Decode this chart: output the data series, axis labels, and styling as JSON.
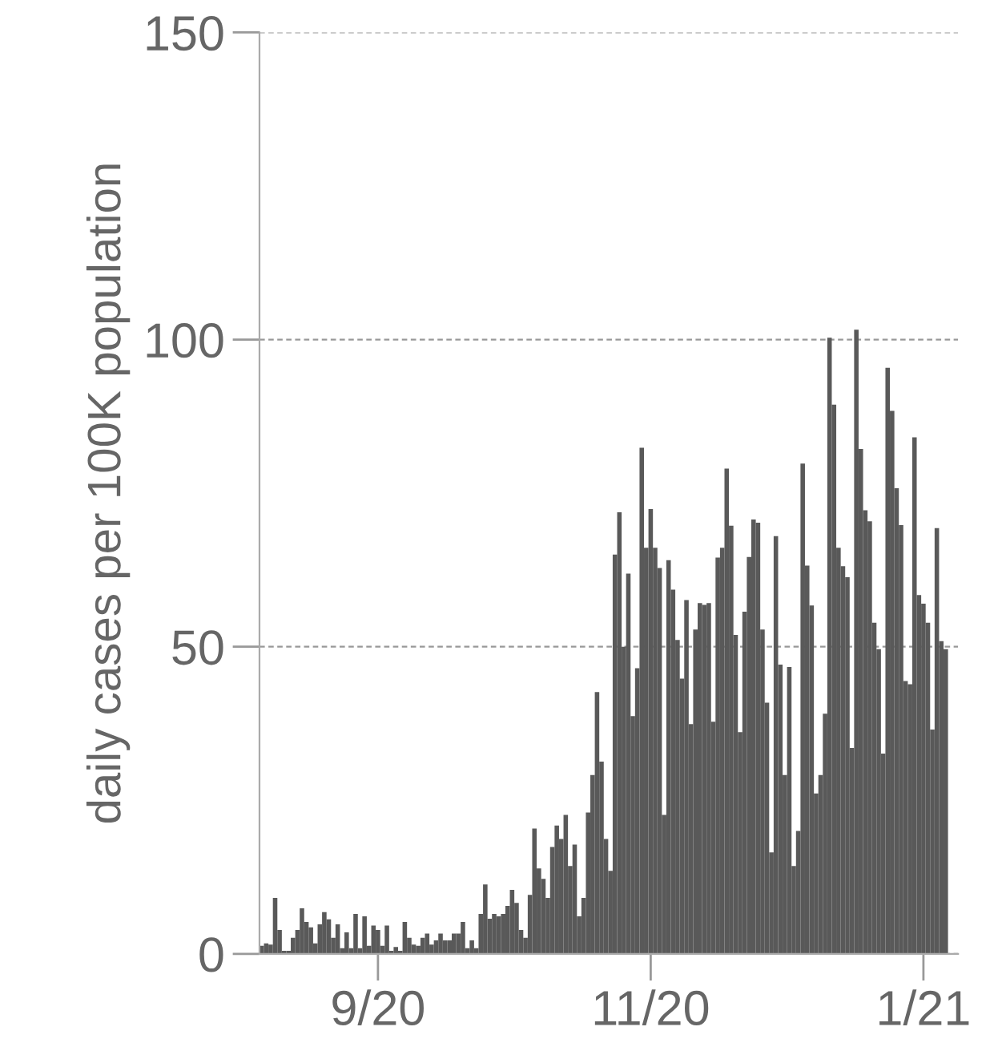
{
  "chart_data": {
    "type": "bar",
    "ylabel": "daily cases per 100K population",
    "color": "#595959",
    "x": [
      "2020-08-06",
      "2020-08-07",
      "2020-08-08",
      "2020-08-09",
      "2020-08-10",
      "2020-08-11",
      "2020-08-12",
      "2020-08-13",
      "2020-08-14",
      "2020-08-15",
      "2020-08-16",
      "2020-08-17",
      "2020-08-18",
      "2020-08-19",
      "2020-08-20",
      "2020-08-21",
      "2020-08-22",
      "2020-08-23",
      "2020-08-24",
      "2020-08-25",
      "2020-08-26",
      "2020-08-27",
      "2020-08-28",
      "2020-08-29",
      "2020-08-30",
      "2020-08-31",
      "2020-09-01",
      "2020-09-02",
      "2020-09-03",
      "2020-09-04",
      "2020-09-05",
      "2020-09-06",
      "2020-09-07",
      "2020-09-08",
      "2020-09-09",
      "2020-09-10",
      "2020-09-11",
      "2020-09-12",
      "2020-09-13",
      "2020-09-14",
      "2020-09-15",
      "2020-09-16",
      "2020-09-17",
      "2020-09-18",
      "2020-09-19",
      "2020-09-20",
      "2020-09-21",
      "2020-09-22",
      "2020-09-23",
      "2020-09-24",
      "2020-09-25",
      "2020-09-26",
      "2020-09-27",
      "2020-09-28",
      "2020-09-29",
      "2020-09-30",
      "2020-10-01",
      "2020-10-02",
      "2020-10-03",
      "2020-10-04",
      "2020-10-05",
      "2020-10-06",
      "2020-10-07",
      "2020-10-08",
      "2020-10-09",
      "2020-10-10",
      "2020-10-11",
      "2020-10-12",
      "2020-10-13",
      "2020-10-14",
      "2020-10-15",
      "2020-10-16",
      "2020-10-17",
      "2020-10-18",
      "2020-10-19",
      "2020-10-20",
      "2020-10-21",
      "2020-10-22",
      "2020-10-23",
      "2020-10-24",
      "2020-10-25",
      "2020-10-26",
      "2020-10-27",
      "2020-10-28",
      "2020-10-29",
      "2020-10-30",
      "2020-10-31",
      "2020-11-01",
      "2020-11-02",
      "2020-11-03",
      "2020-11-04",
      "2020-11-05",
      "2020-11-06",
      "2020-11-07",
      "2020-11-08",
      "2020-11-09",
      "2020-11-10",
      "2020-11-11",
      "2020-11-12",
      "2020-11-13",
      "2020-11-14",
      "2020-11-15",
      "2020-11-16",
      "2020-11-17",
      "2020-11-18",
      "2020-11-19",
      "2020-11-20",
      "2020-11-21",
      "2020-11-22",
      "2020-11-23",
      "2020-11-24",
      "2020-11-25",
      "2020-11-26",
      "2020-11-27",
      "2020-11-28",
      "2020-11-29",
      "2020-11-30",
      "2020-12-01",
      "2020-12-02",
      "2020-12-03",
      "2020-12-04",
      "2020-12-05",
      "2020-12-06",
      "2020-12-07",
      "2020-12-08",
      "2020-12-09",
      "2020-12-10",
      "2020-12-11",
      "2020-12-12",
      "2020-12-13",
      "2020-12-14",
      "2020-12-15",
      "2020-12-16",
      "2020-12-17",
      "2020-12-18",
      "2020-12-19",
      "2020-12-20",
      "2020-12-21",
      "2020-12-22",
      "2020-12-23",
      "2020-12-24",
      "2020-12-25",
      "2020-12-26",
      "2020-12-27",
      "2020-12-28",
      "2020-12-29",
      "2020-12-30",
      "2020-12-31",
      "2021-01-01",
      "2021-01-02",
      "2021-01-03",
      "2021-01-04",
      "2021-01-05",
      "2021-01-06"
    ],
    "values": [
      1.3,
      1.7,
      1.5,
      9.1,
      3.9,
      0.5,
      0.5,
      2.6,
      3.9,
      7.4,
      5.2,
      4.3,
      1.7,
      4.8,
      6.8,
      5.6,
      2.6,
      4.8,
      0.9,
      3.5,
      0.9,
      6.5,
      0.9,
      6.1,
      1.3,
      4.6,
      3.9,
      1.3,
      4.6,
      0.5,
      1.1,
      0.5,
      5.2,
      2.6,
      1.5,
      1.3,
      2.6,
      3.3,
      1.5,
      2.2,
      3.3,
      2.2,
      2.2,
      3.3,
      3.3,
      5.2,
      0.9,
      2.2,
      0.9,
      6.5,
      11.3,
      5.7,
      6.5,
      6.1,
      6.5,
      7.8,
      10.4,
      8.3,
      3.9,
      2.6,
      9.6,
      20.4,
      13.9,
      12.2,
      9.1,
      17.4,
      20.9,
      18.7,
      22.6,
      14.3,
      17.8,
      6.1,
      9.1,
      23.0,
      29.1,
      42.6,
      31.3,
      18.7,
      13.5,
      65.0,
      71.9,
      50.0,
      61.9,
      38.7,
      46.5,
      82.4,
      66.1,
      72.4,
      66.1,
      62.8,
      22.6,
      64.1,
      59.3,
      51.1,
      44.8,
      57.6,
      37.4,
      52.8,
      57.1,
      56.8,
      57.1,
      37.8,
      64.5,
      66.1,
      79.0,
      69.7,
      51.9,
      36.1,
      55.7,
      64.6,
      70.7,
      70.2,
      52.8,
      40.9,
      16.5,
      68.0,
      47.1,
      29.1,
      46.7,
      14.3,
      20.0,
      79.8,
      63.2,
      56.7,
      26.1,
      29.1,
      39.1,
      100.3,
      89.4,
      66.1,
      63.1,
      61.3,
      33.5,
      101.6,
      82.2,
      72.2,
      70.4,
      53.9,
      49.6,
      32.6,
      95.4,
      88.4,
      75.8,
      69.8,
      44.4,
      43.9,
      84.1,
      58.4,
      57.0,
      53.9,
      36.5,
      69.3,
      50.9,
      49.6
    ],
    "xlim": [
      "2020-08-05T12:00",
      "2021-01-08T18:00"
    ],
    "xticks": [
      {
        "value": "2020-09-01",
        "label": "9/20"
      },
      {
        "value": "2020-11-01",
        "label": "11/20"
      },
      {
        "value": "2021-01-01",
        "label": "1/21"
      }
    ],
    "ylim": [
      0,
      150
    ],
    "yticks": [
      0,
      50,
      100,
      150
    ],
    "grid": "y"
  }
}
